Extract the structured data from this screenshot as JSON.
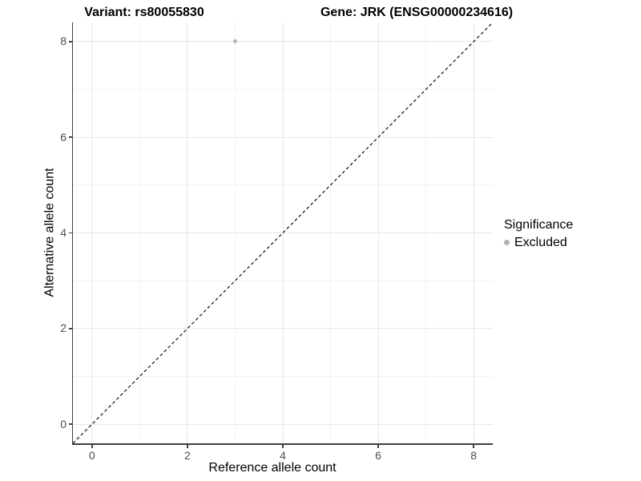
{
  "titles": {
    "variant": "Variant: rs80055830",
    "gene": "Gene: JRK (ENSG00000234616)"
  },
  "legend": {
    "title": "Significance",
    "items": [
      {
        "label": "Excluded",
        "color": "#b2b2b2"
      }
    ]
  },
  "chart_data": {
    "type": "scatter",
    "title": "Variant: rs80055830 — Gene: JRK (ENSG00000234616)",
    "xlabel": "Reference allele count",
    "ylabel": "Alternative allele count",
    "xlim": [
      -0.4,
      8.4
    ],
    "ylim": [
      -0.4,
      8.4
    ],
    "x_major_ticks": [
      0,
      2,
      4,
      6,
      8
    ],
    "y_major_ticks": [
      0,
      2,
      4,
      6,
      8
    ],
    "x_minor_ticks": [
      1,
      3,
      5,
      7
    ],
    "y_minor_ticks": [
      1,
      3,
      5,
      7
    ],
    "grid": "major+minor",
    "legend_position": "right",
    "series": [
      {
        "name": "Excluded",
        "color": "#b2b2b2",
        "marker": "circle",
        "points": [
          {
            "x": 3,
            "y": 8
          }
        ]
      }
    ],
    "annotations": [
      {
        "type": "identity-line",
        "style": "dashed",
        "color": "#111111",
        "from": [
          -0.4,
          -0.4
        ],
        "to": [
          8.4,
          8.4
        ]
      }
    ]
  },
  "colors": {
    "background": "#ffffff",
    "grid_major": "#e7e7e7",
    "grid_minor": "#f3f3f3",
    "axis_line": "#404040",
    "tick_label": "#4d4d4d"
  }
}
